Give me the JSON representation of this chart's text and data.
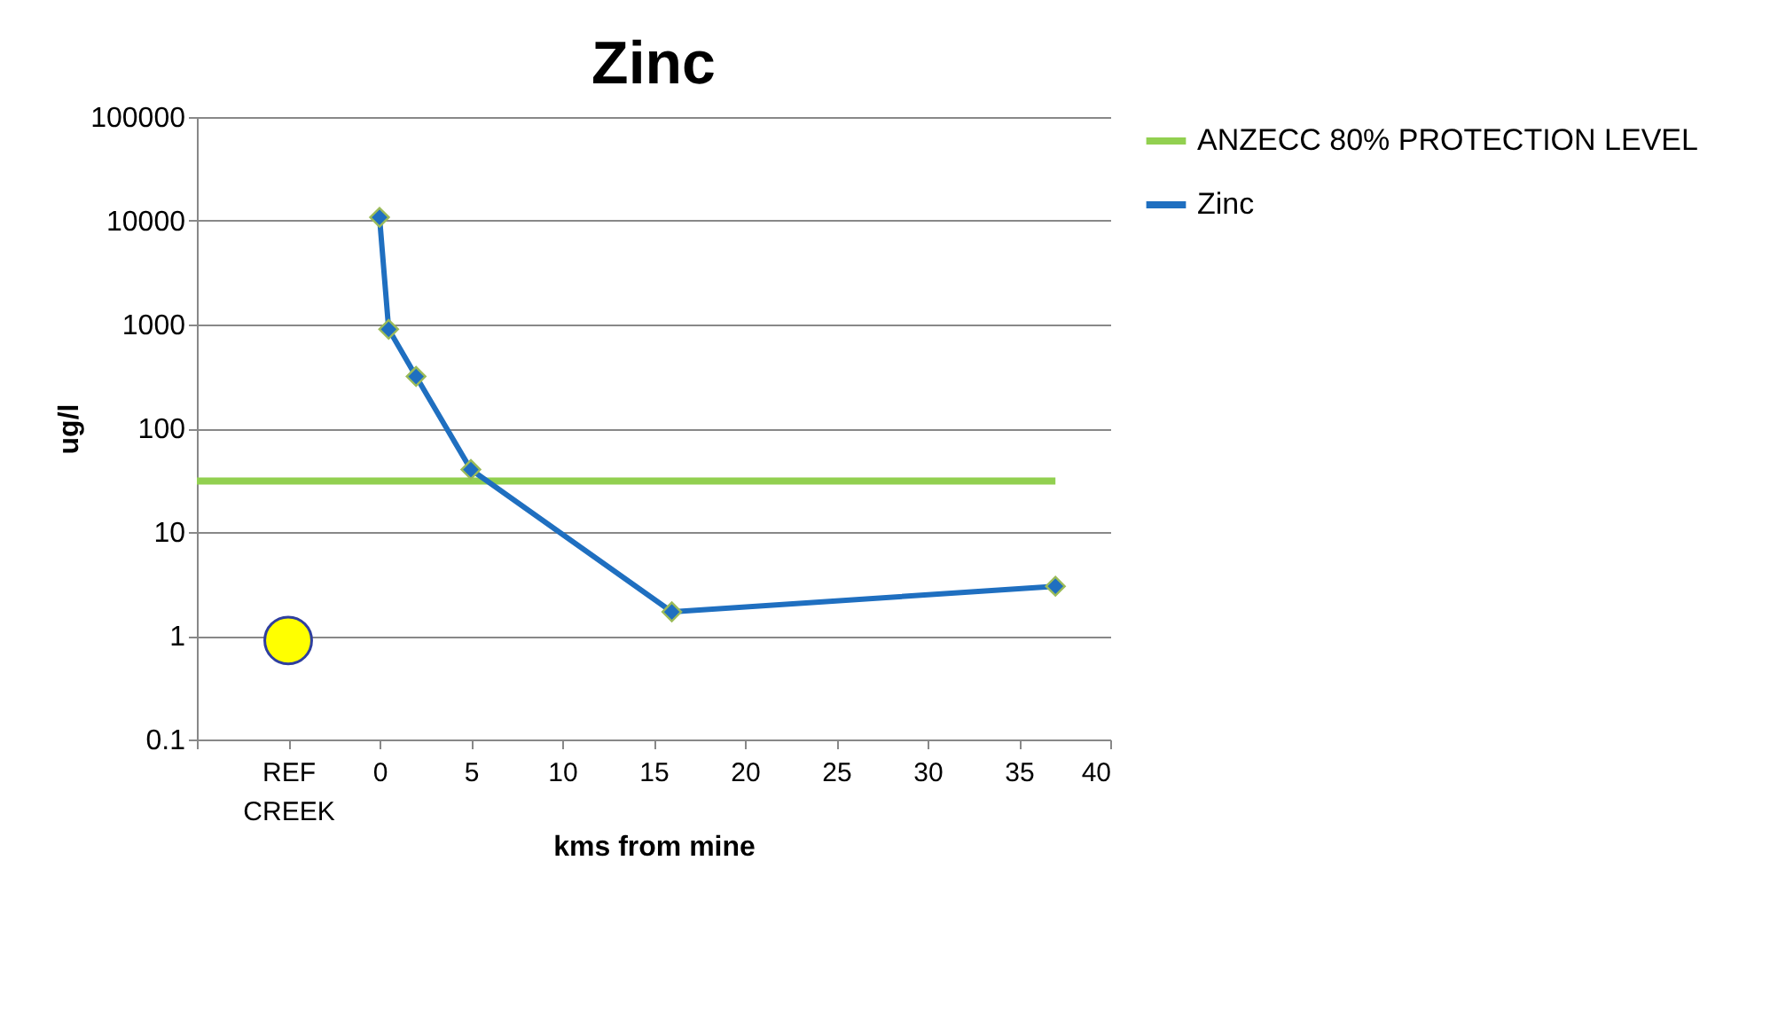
{
  "chart_data": {
    "type": "line",
    "title": "Zinc",
    "xlabel": "kms from mine",
    "ylabel": "ug/l",
    "xlim": [
      -10,
      40
    ],
    "xticks": [
      {
        "value": -10,
        "label": null
      },
      {
        "value": -5,
        "label": "REF CREEK"
      },
      0,
      5,
      10,
      15,
      20,
      25,
      30,
      35,
      40
    ],
    "ylim": [
      0.1,
      100000
    ],
    "yticks": [
      0.1,
      1,
      10,
      100,
      1000,
      10000,
      100000
    ],
    "log": "y",
    "grid": "y",
    "legend": "right",
    "series": [
      {
        "name": "ANZECC 80% PROTECTION LEVEL",
        "color": "#92d050",
        "x": [
          -10,
          37
        ],
        "values": [
          31,
          31
        ],
        "marker": "none"
      },
      {
        "name": "Zinc",
        "color": "#1f6fc0",
        "x": [
          0,
          0.5,
          2,
          5,
          16,
          37
        ],
        "values": [
          10800,
          900,
          316,
          40,
          1.7,
          3
        ],
        "marker": "diamond"
      },
      {
        "type": "scatter",
        "color": "#ffff00",
        "x": [
          -5
        ],
        "values": [
          0.9
        ],
        "marker": "circle"
      }
    ]
  }
}
